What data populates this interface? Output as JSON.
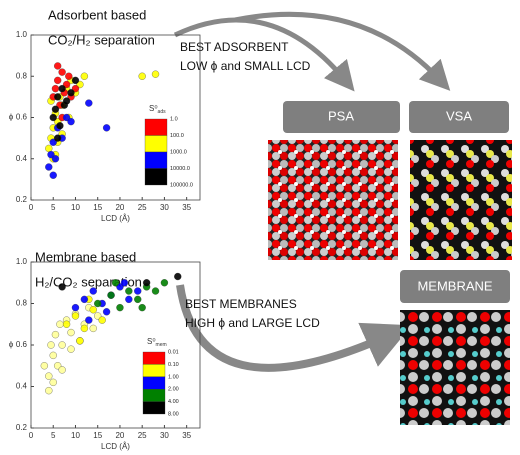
{
  "chart_data": [
    {
      "type": "scatter",
      "title": [
        "Adsorbent based",
        "CO₂/H₂ separation"
      ],
      "x_label": "LCD (Å)",
      "y_label": "ϕ",
      "xlim": [
        0,
        38
      ],
      "ylim": [
        0.2,
        1.0
      ],
      "xticks": [
        0,
        5,
        10,
        15,
        20,
        25,
        30,
        35
      ],
      "yticks": [
        0.2,
        0.4,
        0.6,
        0.8,
        {
          "value": 1,
          "label": "1.0"
        }
      ],
      "legend_symbol": "S⁰",
      "legend_sub": "ads",
      "colorbar": {
        "colors": [
          "#ff0000",
          "#ffff00",
          "#0000ff",
          "#000000"
        ],
        "labels": [
          "1.0",
          "100.0",
          "1000.0",
          "10000.0",
          "100000.0"
        ]
      },
      "series": [
        {
          "color": "#ffff00",
          "x": [
            4,
            4.5,
            5,
            5.5,
            6,
            6.5,
            7,
            8,
            9,
            10,
            11,
            12,
            5,
            6,
            7,
            25,
            28,
            4.5,
            5.5,
            8.5
          ],
          "values": [
            0.45,
            0.5,
            0.55,
            0.62,
            0.48,
            0.7,
            0.66,
            0.74,
            0.78,
            0.72,
            0.76,
            0.8,
            0.4,
            0.58,
            0.52,
            0.8,
            0.81,
            0.68,
            0.42,
            0.6
          ]
        },
        {
          "color": "#ff0000",
          "x": [
            5,
            5.5,
            6,
            6.5,
            7,
            7.5,
            8,
            8.5,
            9,
            10,
            6,
            7
          ],
          "values": [
            0.7,
            0.74,
            0.78,
            0.66,
            0.82,
            0.72,
            0.76,
            0.8,
            0.7,
            0.74,
            0.85,
            0.6
          ]
        },
        {
          "color": "#0000ff",
          "x": [
            4,
            4.5,
            5,
            5.5,
            6,
            7,
            8,
            9,
            13,
            17,
            5
          ],
          "values": [
            0.36,
            0.42,
            0.48,
            0.4,
            0.55,
            0.5,
            0.6,
            0.58,
            0.67,
            0.55,
            0.32
          ]
        },
        {
          "color": "#000000",
          "x": [
            5,
            5.5,
            6,
            6.5,
            7,
            7.5,
            8,
            9,
            6,
            10
          ],
          "values": [
            0.6,
            0.64,
            0.7,
            0.56,
            0.74,
            0.66,
            0.68,
            0.72,
            0.5,
            0.78
          ]
        }
      ]
    },
    {
      "type": "scatter",
      "title": [
        "Membrane based",
        "H₂/CO₂ separation"
      ],
      "x_label": "LCD (Å)",
      "y_label": "ϕ",
      "xlim": [
        0,
        38
      ],
      "ylim": [
        0.2,
        1.0
      ],
      "xticks": [
        0,
        5,
        10,
        15,
        20,
        25,
        30,
        35
      ],
      "yticks": [
        0.2,
        0.4,
        0.6,
        0.8,
        {
          "value": 1,
          "label": "1.0"
        }
      ],
      "legend_symbol": "S⁰",
      "legend_sub": "mem",
      "colorbar": {
        "colors": [
          "#ff0000",
          "#ffff00",
          "#0000ff",
          "#008000",
          "#000000"
        ],
        "labels": [
          "0.01",
          "0.10",
          "1.00",
          "2.00",
          "4.00",
          "8.00"
        ]
      },
      "series": [
        {
          "color": "#ffff99",
          "x": [
            3,
            4,
            4.5,
            5,
            5.5,
            6,
            6.5,
            7,
            8,
            9,
            10,
            11,
            12,
            13,
            14,
            15,
            5,
            7,
            9,
            4
          ],
          "values": [
            0.5,
            0.45,
            0.6,
            0.55,
            0.65,
            0.5,
            0.7,
            0.6,
            0.72,
            0.66,
            0.75,
            0.62,
            0.7,
            0.78,
            0.68,
            0.74,
            0.42,
            0.48,
            0.58,
            0.38
          ]
        },
        {
          "color": "#ffff00",
          "x": [
            8,
            10,
            12,
            14,
            16,
            11,
            13
          ],
          "values": [
            0.7,
            0.74,
            0.68,
            0.77,
            0.72,
            0.62,
            0.82
          ]
        },
        {
          "color": "#0000ff",
          "x": [
            10,
            12,
            14,
            16,
            18,
            20,
            22,
            24,
            13,
            17,
            21
          ],
          "values": [
            0.78,
            0.82,
            0.86,
            0.8,
            0.84,
            0.88,
            0.82,
            0.86,
            0.72,
            0.76,
            0.9
          ]
        },
        {
          "color": "#008000",
          "x": [
            15,
            18,
            20,
            22,
            24,
            26,
            28,
            30,
            19,
            25
          ],
          "values": [
            0.8,
            0.84,
            0.78,
            0.86,
            0.82,
            0.88,
            0.86,
            0.9,
            0.9,
            0.78
          ]
        },
        {
          "color": "#000000",
          "x": [
            7,
            26,
            33
          ],
          "values": [
            0.88,
            0.9,
            0.93
          ]
        }
      ]
    }
  ],
  "diagram": {
    "adsorbent_note": [
      "BEST ADSORBENT",
      "LOW ϕ and SMALL LCD"
    ],
    "psa": "PSA",
    "vsa": "VSA",
    "membrane": "MEMBRANE",
    "membrane_note": [
      "BEST MEMBRANES",
      "HIGH ϕ and LARGE LCD"
    ]
  }
}
